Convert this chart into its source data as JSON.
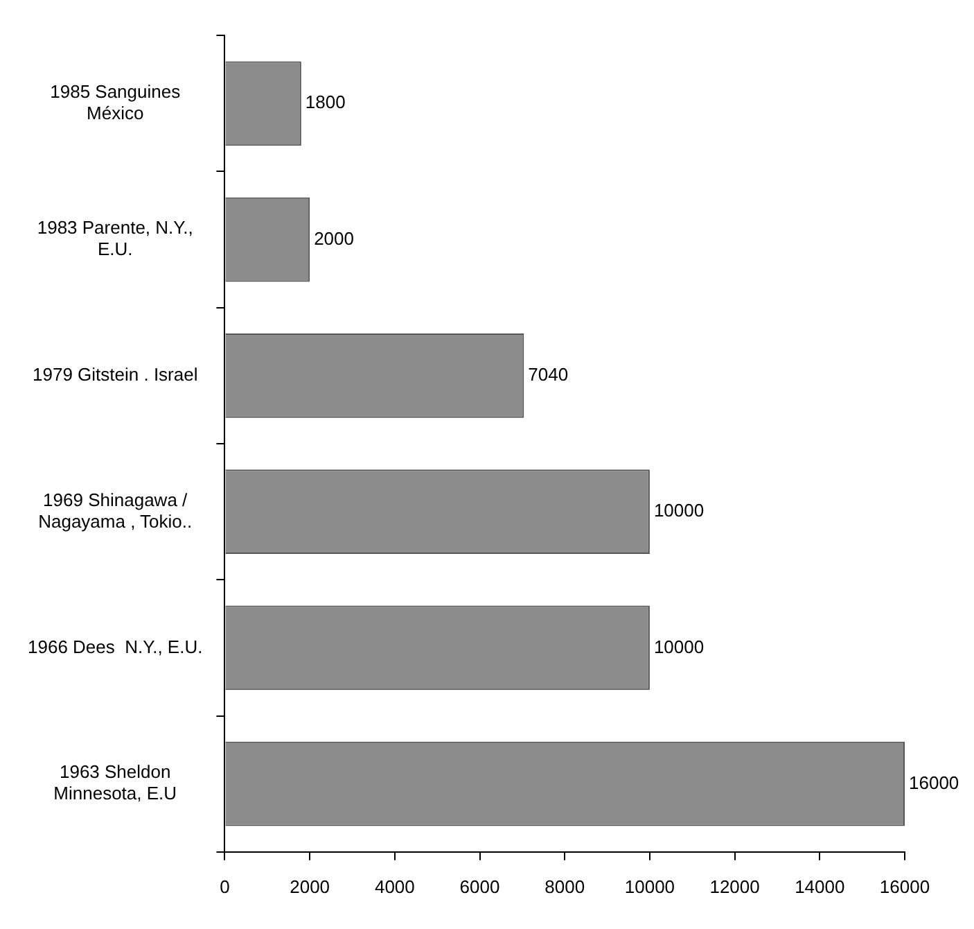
{
  "chart_data": {
    "type": "bar",
    "orientation": "horizontal",
    "categories": [
      "1985 Sanguines\nMéxico",
      "1983 Parente, N.Y.,\nE.U.",
      "1979 Gitstein . Israel",
      "1969 Shinagawa /\nNagayama , Tokio..",
      "1966 Dees  N.Y., E.U.",
      "1963 Sheldon\nMinnesota, E.U"
    ],
    "values": [
      1800,
      2000,
      7040,
      10000,
      10000,
      16000
    ],
    "color": "#8c8c8c",
    "xlim": [
      0,
      16000
    ],
    "xticks": [
      0,
      2000,
      4000,
      6000,
      8000,
      10000,
      12000,
      14000,
      16000
    ],
    "data_labels": true,
    "grid": false,
    "legend": false
  }
}
